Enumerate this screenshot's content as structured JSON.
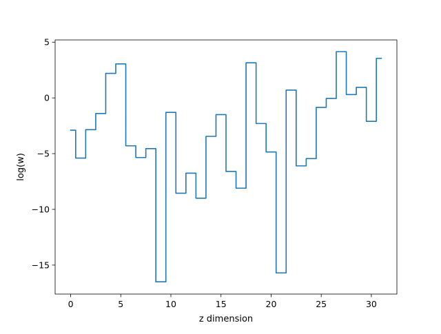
{
  "chart_data": {
    "type": "line",
    "title": "",
    "xlabel": "z dimension",
    "ylabel": "log(w)",
    "xlim": [
      -1.55,
      32.55
    ],
    "ylim": [
      -17.6,
      5.2
    ],
    "x_ticks": [
      0,
      5,
      10,
      15,
      20,
      25,
      30
    ],
    "y_ticks": [
      5,
      0,
      -5,
      -10,
      -15
    ],
    "x_tick_labels": [
      "0",
      "5",
      "10",
      "15",
      "20",
      "25",
      "30"
    ],
    "y_tick_labels": [
      "5",
      "0",
      "−5",
      "−10",
      "−15"
    ],
    "drawstyle": "steps-mid",
    "grid": false,
    "series": [
      {
        "color": "#1f77b4",
        "x": [
          0,
          1,
          2,
          3,
          4,
          5,
          6,
          7,
          8,
          9,
          10,
          11,
          12,
          13,
          14,
          15,
          16,
          17,
          18,
          19,
          20,
          21,
          22,
          23,
          24,
          25,
          26,
          27,
          28,
          29,
          30,
          31
        ],
        "y": [
          -2.9,
          -5.4,
          -2.85,
          -1.4,
          2.2,
          3.05,
          -4.3,
          -5.35,
          -4.55,
          -16.5,
          -1.3,
          -8.55,
          -6.75,
          -9.0,
          -3.45,
          -1.5,
          -6.6,
          -8.1,
          3.15,
          -2.3,
          -4.85,
          -15.7,
          0.7,
          -6.1,
          -5.45,
          -0.85,
          -0.05,
          4.15,
          0.3,
          0.95,
          -2.1,
          3.55
        ]
      }
    ]
  }
}
